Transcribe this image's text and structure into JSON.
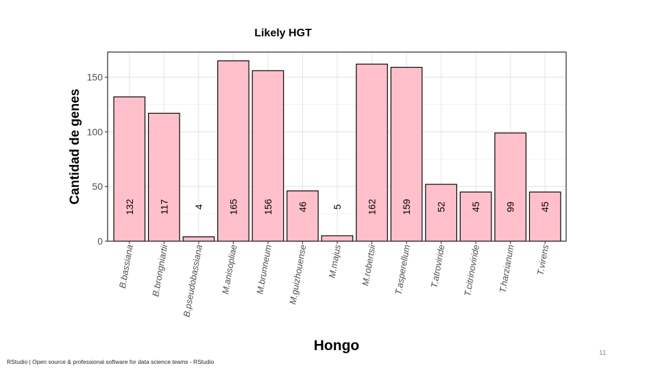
{
  "chart_data": {
    "type": "bar",
    "title": "Likely HGT",
    "xlabel": "Hongo",
    "ylabel": "Cantidad de genes",
    "categories": [
      "B.bassiana",
      "B.brongniartii",
      "B.pseudobassiana",
      "M.anisopliae",
      "M.brunneum",
      "M.guizhouense",
      "M.majus",
      "M.robertsii",
      "T.asperellum",
      "T.atroviride",
      "T.citrinoviride",
      "T.harzianum",
      "T.virens"
    ],
    "values": [
      132,
      117,
      4,
      165,
      156,
      46,
      5,
      162,
      159,
      52,
      45,
      99,
      45
    ],
    "data_labels": [
      "132",
      "117",
      "4",
      "165",
      "156",
      "46",
      "5",
      "162",
      "159",
      "52",
      "45",
      "99",
      "45"
    ],
    "yticks": [
      0,
      50,
      100,
      150
    ],
    "ylim": [
      0,
      173
    ],
    "grid": true,
    "bar_color": "#ffc0cb",
    "bar_edge_color": "#000000",
    "legend": "none"
  },
  "footer": {
    "source": "RStudio | Open source & professional software for data science teams - RStudio",
    "page_number": "11"
  }
}
